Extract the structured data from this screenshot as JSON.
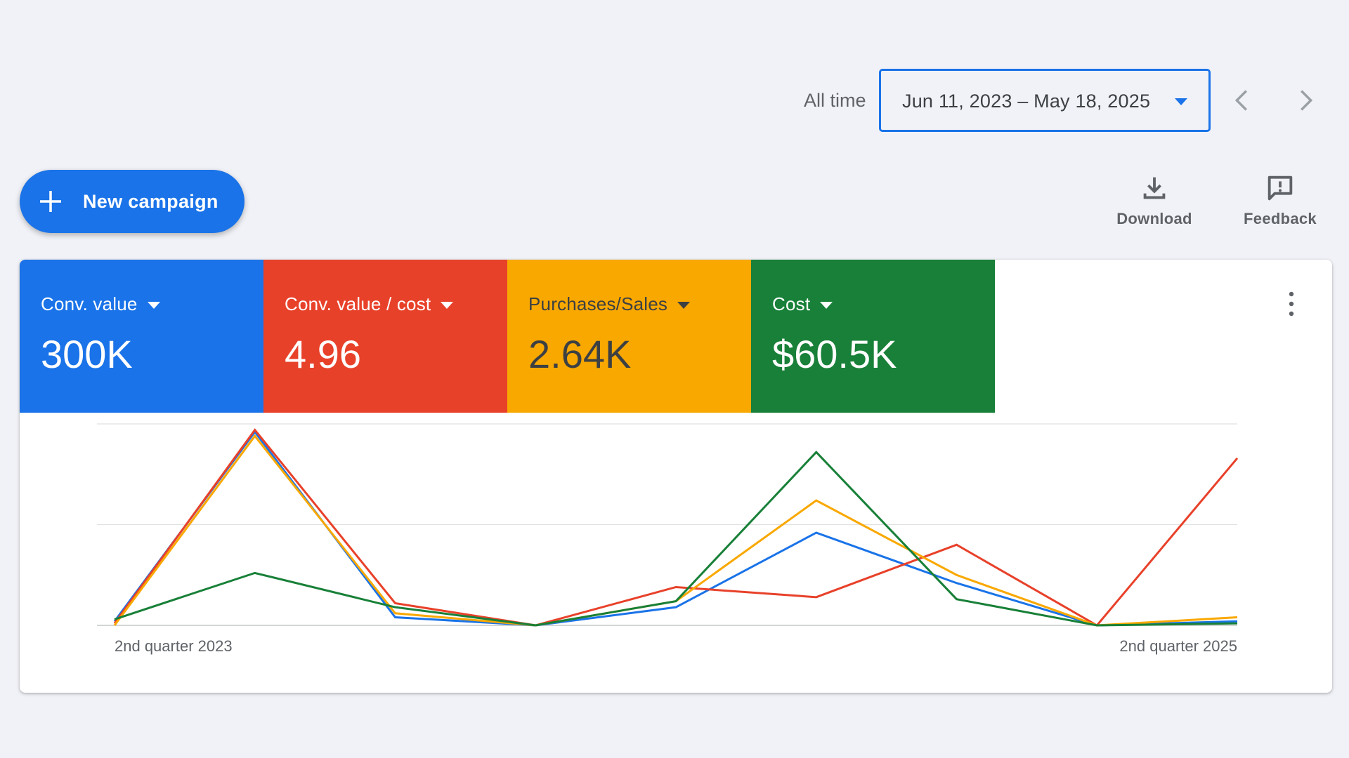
{
  "date_bar": {
    "preset": "All time",
    "range": "Jun 11, 2023 – May 18, 2025"
  },
  "icons": {
    "prev": "chevron-left-icon",
    "next": "chevron-right-icon",
    "plus": "plus-icon",
    "download": "download-icon",
    "feedback": "feedback-icon",
    "more": "more-vert-icon"
  },
  "actions": {
    "new_campaign": "New campaign",
    "download": "Download",
    "feedback": "Feedback"
  },
  "metrics": [
    {
      "label": "Conv. value",
      "value": "300K",
      "color": "#1a73e8",
      "text_color": "#ffffff"
    },
    {
      "label": "Conv. value / cost",
      "value": "4.96",
      "color": "#e8412a",
      "text_color": "#ffffff"
    },
    {
      "label": "Purchases/Sales",
      "value": "2.64K",
      "color": "#f9a800",
      "text_color": "#3c4043"
    },
    {
      "label": "Cost",
      "value": "$60.5K",
      "color": "#188038",
      "text_color": "#ffffff"
    }
  ],
  "chart_data": {
    "type": "line",
    "x_labels": [
      "2nd quarter 2023",
      "2nd quarter 2025"
    ],
    "x": [
      0,
      1,
      2,
      3,
      4,
      5,
      6,
      7,
      8
    ],
    "ylim": [
      0,
      100
    ],
    "grid": true,
    "series": [
      {
        "color": "#1a73e8",
        "values": [
          2,
          96,
          4,
          0,
          9,
          46,
          21,
          0,
          2
        ]
      },
      {
        "color": "#e8412a",
        "values": [
          1,
          97,
          11,
          0,
          19,
          14,
          40,
          0,
          83
        ]
      },
      {
        "color": "#f9a800",
        "values": [
          0,
          94,
          6,
          0,
          12,
          62,
          25,
          0,
          4
        ]
      },
      {
        "color": "#188038",
        "values": [
          3,
          26,
          9,
          0,
          12,
          86,
          13,
          0,
          1
        ]
      }
    ]
  }
}
